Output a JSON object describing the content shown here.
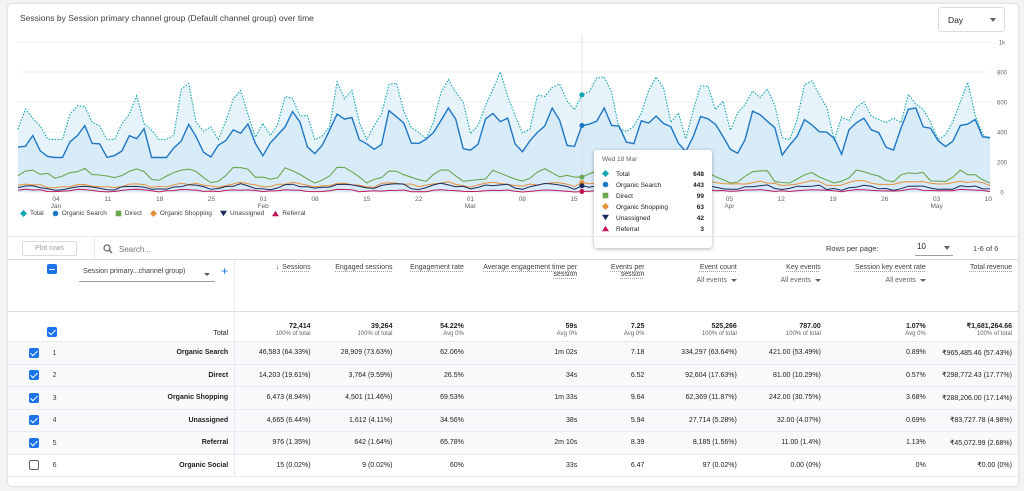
{
  "chart_title": "Sessions by Session primary channel group (Default channel group) over time",
  "granularity": "Day",
  "y_ticks": [
    "1k",
    "800",
    "600",
    "400",
    "200",
    "0"
  ],
  "x_ticks": [
    {
      "d": "04",
      "m": "Jan"
    },
    {
      "d": "11",
      "m": ""
    },
    {
      "d": "18",
      "m": ""
    },
    {
      "d": "25",
      "m": ""
    },
    {
      "d": "01",
      "m": "Feb"
    },
    {
      "d": "08",
      "m": ""
    },
    {
      "d": "15",
      "m": ""
    },
    {
      "d": "22",
      "m": ""
    },
    {
      "d": "01",
      "m": "Mar"
    },
    {
      "d": "08",
      "m": ""
    },
    {
      "d": "15",
      "m": ""
    },
    {
      "d": "22",
      "m": ""
    },
    {
      "d": "29",
      "m": ""
    },
    {
      "d": "05",
      "m": "Apr"
    },
    {
      "d": "12",
      "m": ""
    },
    {
      "d": "19",
      "m": ""
    },
    {
      "d": "26",
      "m": ""
    },
    {
      "d": "03",
      "m": "May"
    },
    {
      "d": "10",
      "m": ""
    }
  ],
  "legend": [
    {
      "label": "Total",
      "color": "#12a4af",
      "icon": "diamond-icon"
    },
    {
      "label": "Organic Search",
      "color": "#1f77c4",
      "icon": "circle-icon"
    },
    {
      "label": "Direct",
      "color": "#6aa84f",
      "icon": "square-icon"
    },
    {
      "label": "Organic Shopping",
      "color": "#e69138",
      "icon": "diamond-icon"
    },
    {
      "label": "Unassigned",
      "color": "#1c2a5e",
      "icon": "triangle-down-icon"
    },
    {
      "label": "Referral",
      "color": "#c2185b",
      "icon": "triangle-up-icon"
    }
  ],
  "tooltip": {
    "date": "Wed 18 Mar",
    "rows": [
      {
        "label": "Total",
        "value": "648"
      },
      {
        "label": "Organic Search",
        "value": "443"
      },
      {
        "label": "Direct",
        "value": "99"
      },
      {
        "label": "Organic Shopping",
        "value": "63"
      },
      {
        "label": "Unassigned",
        "value": "42"
      },
      {
        "label": "Referral",
        "value": "3"
      }
    ]
  },
  "chart_data": {
    "type": "line",
    "title": "Sessions by Session primary channel group (Default channel group) over time",
    "x_range": [
      "2026-01-01",
      "2026-05-12"
    ],
    "ylim": [
      0,
      1000
    ],
    "grid": true,
    "legend_position": "bottom-left",
    "series": [
      {
        "name": "Total",
        "start": 420,
        "mid": 600,
        "end": 520,
        "min": 350,
        "max": 820
      },
      {
        "name": "Organic Search",
        "start": 280,
        "mid": 430,
        "end": 400,
        "min": 230,
        "max": 560
      },
      {
        "name": "Direct",
        "start": 120,
        "mid": 110,
        "end": 100,
        "min": 60,
        "max": 230
      },
      {
        "name": "Organic Shopping",
        "start": 40,
        "mid": 55,
        "end": 60,
        "min": 20,
        "max": 80
      },
      {
        "name": "Unassigned",
        "start": 30,
        "mid": 40,
        "end": 25,
        "min": 5,
        "max": 180
      },
      {
        "name": "Referral",
        "start": 10,
        "mid": 8,
        "end": 12,
        "min": 0,
        "max": 40
      }
    ],
    "highlight": {
      "x": "2026-03-18",
      "values": [
        648,
        443,
        99,
        63,
        42,
        3
      ]
    }
  },
  "toolbar": {
    "plot_rows": "Plot rows",
    "search_placeholder": "Search...",
    "rows_per_page_label": "Rows per page:",
    "rows_per_page": "10",
    "pager": "1-6 of 6"
  },
  "table": {
    "dimension_select": "Session primary...channel group)",
    "headers": [
      {
        "label": "Sessions",
        "sorted": true
      },
      {
        "label": "Engaged sessions"
      },
      {
        "label": "Engagement rate"
      },
      {
        "label": "Average engagement time per session"
      },
      {
        "label": "Events per session"
      },
      {
        "label": "Event count",
        "dropdown": "All events"
      },
      {
        "label": "Key events",
        "dropdown": "All events"
      },
      {
        "label": "Session key event rate",
        "dropdown": "All events"
      },
      {
        "label": "Total revenue"
      }
    ],
    "total": {
      "label": "Total",
      "values": [
        "72,414",
        "39,264",
        "54.22%",
        "59s",
        "7.25",
        "525,266",
        "787.00",
        "1.07%",
        "₹1,681,264.66"
      ],
      "subs": [
        "100% of total",
        "100% of total",
        "Avg 0%",
        "Avg 0%",
        "Avg 0%",
        "100% of total",
        "100% of total",
        "Avg 0%",
        "100% of total"
      ]
    },
    "rows": [
      {
        "idx": "1",
        "name": "Organic Search",
        "checked": true,
        "values": [
          "46,583 (64.33%)",
          "28,909 (73.63%)",
          "62.06%",
          "1m 02s",
          "7.18",
          "334,297 (63.64%)",
          "421.00 (53.49%)",
          "0.89%",
          "₹965,485.46 (57.43%)"
        ]
      },
      {
        "idx": "2",
        "name": "Direct",
        "checked": true,
        "values": [
          "14,203 (19.61%)",
          "3,764 (9.59%)",
          "26.5%",
          "34s",
          "6.52",
          "92,604 (17.63%)",
          "81.00 (10.29%)",
          "0.57%",
          "₹298,772.43 (17.77%)"
        ]
      },
      {
        "idx": "3",
        "name": "Organic Shopping",
        "checked": true,
        "values": [
          "6,473 (8.94%)",
          "4,501 (11.46%)",
          "69.53%",
          "1m 33s",
          "9.64",
          "62,369 (11.87%)",
          "242.00 (30.75%)",
          "3.68%",
          "₹288,206.00 (17.14%)"
        ]
      },
      {
        "idx": "4",
        "name": "Unassigned",
        "checked": true,
        "values": [
          "4,665 (6.44%)",
          "1,612 (4.11%)",
          "34.56%",
          "38s",
          "5.94",
          "27,714 (5.28%)",
          "32.00 (4.07%)",
          "0.69%",
          "₹83,727.78 (4.98%)"
        ]
      },
      {
        "idx": "5",
        "name": "Referral",
        "checked": true,
        "values": [
          "976 (1.35%)",
          "642 (1.64%)",
          "65.78%",
          "2m 10s",
          "8.39",
          "8,185 (1.56%)",
          "11.00 (1.4%)",
          "1.13%",
          "₹45,072.99 (2.68%)"
        ]
      },
      {
        "idx": "6",
        "name": "Organic Social",
        "checked": false,
        "values": [
          "15 (0.02%)",
          "9 (0.02%)",
          "60%",
          "33s",
          "6.47",
          "97 (0.02%)",
          "0.00 (0%)",
          "0%",
          "₹0.00 (0%)"
        ]
      }
    ]
  }
}
